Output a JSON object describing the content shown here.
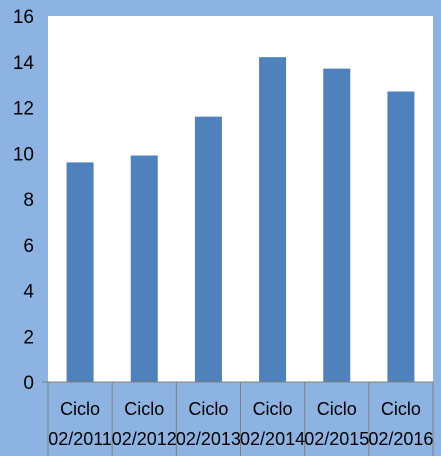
{
  "chart_data": {
    "type": "bar",
    "categories": [
      [
        "Ciclo",
        "02/2011"
      ],
      [
        "Ciclo",
        "02/2012"
      ],
      [
        "Ciclo",
        "02/2013"
      ],
      [
        "Ciclo",
        "02/2014"
      ],
      [
        "Ciclo",
        "02/2015"
      ],
      [
        "Ciclo",
        "02/2016"
      ]
    ],
    "values": [
      9.6,
      9.9,
      11.6,
      14.2,
      13.7,
      12.7
    ],
    "ylim": [
      0,
      16
    ],
    "yticks": [
      "0",
      "2",
      "4",
      "6",
      "8",
      "10",
      "12",
      "14",
      "16"
    ],
    "grid": false,
    "legend": "none",
    "colors": {
      "background": "#8db3e2",
      "plot_area": "#ffffff",
      "bar": "#4f81bd",
      "axis": "#808080"
    }
  }
}
